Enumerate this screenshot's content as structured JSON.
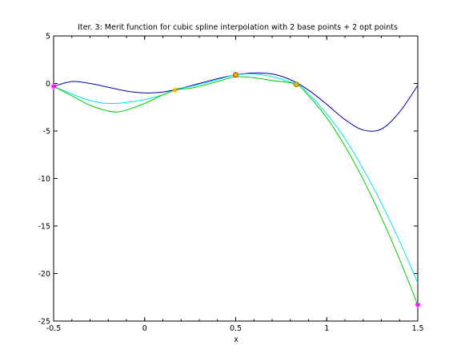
{
  "chart_data": {
    "type": "line",
    "title": "Iter. 3: Merit function for cubic spline interpolation with 2 base points + 2 opt points",
    "xlabel": "x",
    "ylabel": "",
    "xlim": [
      -0.5,
      1.5
    ],
    "ylim": [
      -25,
      5
    ],
    "xticks": [
      -0.5,
      0,
      0.5,
      1,
      1.5
    ],
    "xtick_labels": [
      "-0.5",
      "0",
      "0.5",
      "1",
      "1.5"
    ],
    "yticks": [
      5,
      0,
      -5,
      -10,
      -15,
      -20,
      -25
    ],
    "ytick_labels": [
      "5",
      "0",
      "-5",
      "-10",
      "-15",
      "-20",
      "-25"
    ],
    "grid": false,
    "series": [
      {
        "color": "#0000aa",
        "x": [
          -0.5,
          -0.4,
          -0.3,
          -0.2,
          -0.1,
          0,
          0.1,
          0.2,
          0.3,
          0.4,
          0.5,
          0.6,
          0.7,
          0.8,
          0.9,
          1.0,
          1.1,
          1.2,
          1.3,
          1.4,
          1.5
        ],
        "y": [
          -0.3,
          0.2,
          0.0,
          -0.4,
          -0.8,
          -1.0,
          -0.9,
          -0.5,
          0.0,
          0.5,
          0.9,
          1.1,
          1.0,
          0.4,
          -0.7,
          -2.2,
          -3.8,
          -4.9,
          -4.8,
          -3.0,
          -0.2
        ]
      },
      {
        "color": "#00e5e5",
        "x": [
          -0.5,
          -0.4,
          -0.3,
          -0.2,
          -0.1,
          0,
          0.1,
          0.167,
          0.3,
          0.4,
          0.5,
          0.6,
          0.7,
          0.833,
          0.9,
          1.0,
          1.1,
          1.2,
          1.3,
          1.4,
          1.5
        ],
        "y": [
          -0.3,
          -1.1,
          -1.8,
          -2.1,
          -2.0,
          -1.7,
          -1.2,
          -0.7,
          -0.1,
          0.4,
          0.9,
          1.0,
          0.7,
          -0.1,
          -1.1,
          -3.2,
          -5.8,
          -9.0,
          -12.6,
          -16.6,
          -21.0
        ]
      },
      {
        "color": "#00cc00",
        "x": [
          -0.5,
          -0.4,
          -0.3,
          -0.2,
          -0.15,
          -0.1,
          0,
          0.1,
          0.167,
          0.25,
          0.3,
          0.4,
          0.5,
          0.6,
          0.7,
          0.833,
          0.9,
          1.0,
          1.1,
          1.2,
          1.3,
          1.4,
          1.5
        ],
        "y": [
          -0.3,
          -1.3,
          -2.3,
          -2.9,
          -3.0,
          -2.8,
          -2.1,
          -1.2,
          -0.7,
          -0.5,
          -0.3,
          0.2,
          0.7,
          0.6,
          0.3,
          -0.1,
          -1.3,
          -3.6,
          -6.6,
          -10.1,
          -14.1,
          -18.5,
          -23.3
        ]
      }
    ],
    "markers": [
      {
        "x": -0.5,
        "y": -0.3,
        "shape": "star",
        "color": "#ff00ff"
      },
      {
        "x": 0.167,
        "y": -0.7,
        "shape": "star",
        "color": "#e6b800"
      },
      {
        "x": 0.5,
        "y": 0.9,
        "shape": "circle",
        "color": "#e6b800",
        "stroke": "#cc3300"
      },
      {
        "x": 0.833,
        "y": -0.1,
        "shape": "circle",
        "color": "#e6b800",
        "stroke": "#888800"
      },
      {
        "x": 1.5,
        "y": -23.3,
        "shape": "star",
        "color": "#ff00ff"
      }
    ]
  }
}
